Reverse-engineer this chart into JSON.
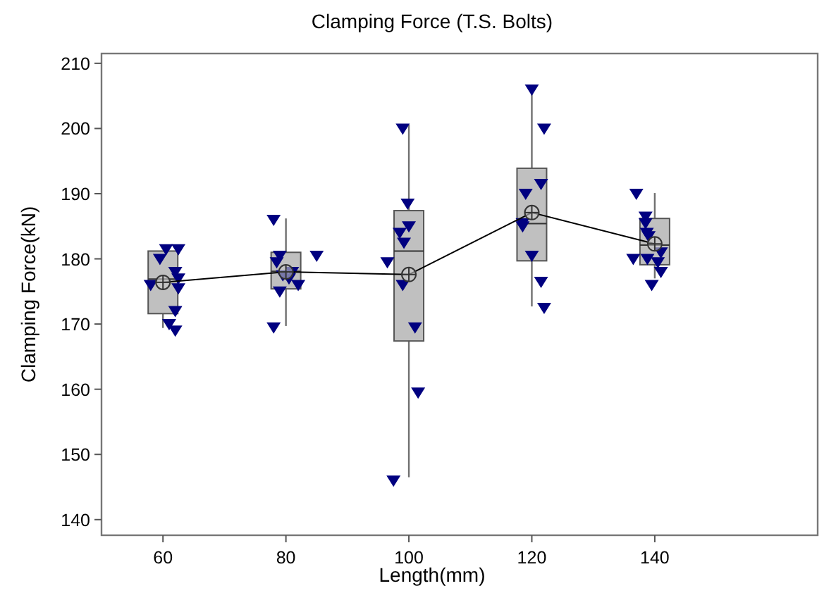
{
  "chart_data": {
    "type": "box",
    "title": "Clamping Force (T.S. Bolts)",
    "xlabel": "Length(mm)",
    "ylabel": "Clamping Force(kN)",
    "xlim": [
      50,
      166.5
    ],
    "xticks": [
      60,
      80,
      100,
      120,
      140
    ],
    "ylim": [
      137.6,
      211.5
    ],
    "yticks": [
      140,
      150,
      160,
      170,
      180,
      190,
      200,
      210
    ],
    "grid": false,
    "series": [
      {
        "color": "#c0c0c0",
        "x": [
          60,
          80,
          100,
          120,
          140
        ],
        "boxes": [
          {
            "low": 169.4,
            "q1": 171.6,
            "median": 176.9,
            "q3": 181.2,
            "high": 181.2
          },
          {
            "low": 169.7,
            "q1": 175.4,
            "median": 178.1,
            "q3": 181,
            "high": 186.2
          },
          {
            "low": 146.5,
            "q1": 167.4,
            "median": 181.2,
            "q3": 187.4,
            "high": 200.6
          },
          {
            "low": 172.7,
            "q1": 179.7,
            "median": 185.4,
            "q3": 193.9,
            "high": 206.5
          },
          {
            "low": 177,
            "q1": 179.1,
            "median": 182.1,
            "q3": 186.2,
            "high": 190.1
          }
        ]
      },
      {
        "type": "scatter",
        "color": "#000080",
        "marker": "triangle",
        "x": [
          60.5,
          62.5,
          59.5,
          62,
          62.5,
          58,
          62.5,
          62,
          61,
          62,
          78,
          79,
          85,
          78.5,
          81,
          79.5,
          80.5,
          82,
          79,
          78,
          99,
          99.8,
          100,
          98.5,
          99.2,
          96.5,
          99,
          101,
          101.5,
          97.5,
          120,
          122,
          121.5,
          119,
          118.5,
          118.5,
          120,
          121.5,
          122,
          137,
          138.5,
          138.5,
          138.7,
          139,
          141,
          136.5,
          138.8,
          140.5,
          141,
          139.5
        ],
        "values": [
          181.5,
          181.5,
          180,
          178,
          177,
          176,
          175.5,
          172,
          170,
          169,
          186,
          180.5,
          180.5,
          179.5,
          178,
          177.5,
          177,
          176,
          175,
          169.5,
          200,
          188.5,
          185,
          184,
          182.5,
          179.5,
          176,
          169.5,
          159.5,
          146,
          206,
          200,
          191.5,
          190,
          185.5,
          185,
          180.5,
          176.5,
          172.5,
          190,
          186.5,
          185.5,
          184,
          183.5,
          181,
          180,
          180,
          179.5,
          178,
          176
        ]
      },
      {
        "type": "line",
        "color": "#000000",
        "marker": "circle",
        "line_style": "solid",
        "x": [
          60,
          80,
          100,
          120,
          140
        ],
        "values": [
          176.4,
          178,
          177.6,
          187.1,
          182.3
        ]
      }
    ]
  }
}
